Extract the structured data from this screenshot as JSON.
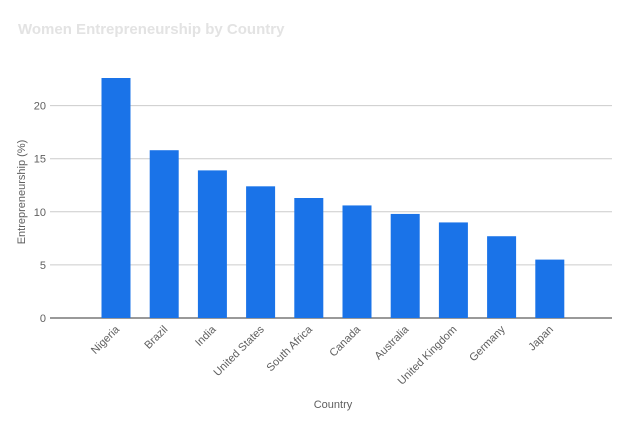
{
  "chart_data": {
    "type": "bar",
    "title": "Women Entrepreneurship by Country",
    "xlabel": "Country",
    "ylabel": "Entrepreneurship (%)",
    "categories": [
      "Nigeria",
      "Brazil",
      "India",
      "United States",
      "South Africa",
      "Canada",
      "Australia",
      "United Kingdom",
      "Germany",
      "Japan"
    ],
    "values": [
      22.6,
      15.8,
      13.9,
      12.4,
      11.3,
      10.6,
      9.8,
      9.0,
      7.7,
      5.5
    ],
    "yticks": [
      "0",
      "5",
      "10",
      "15",
      "20"
    ],
    "ylim": [
      0,
      22.6
    ],
    "grid": true,
    "bar_color": "#1a73e8"
  }
}
